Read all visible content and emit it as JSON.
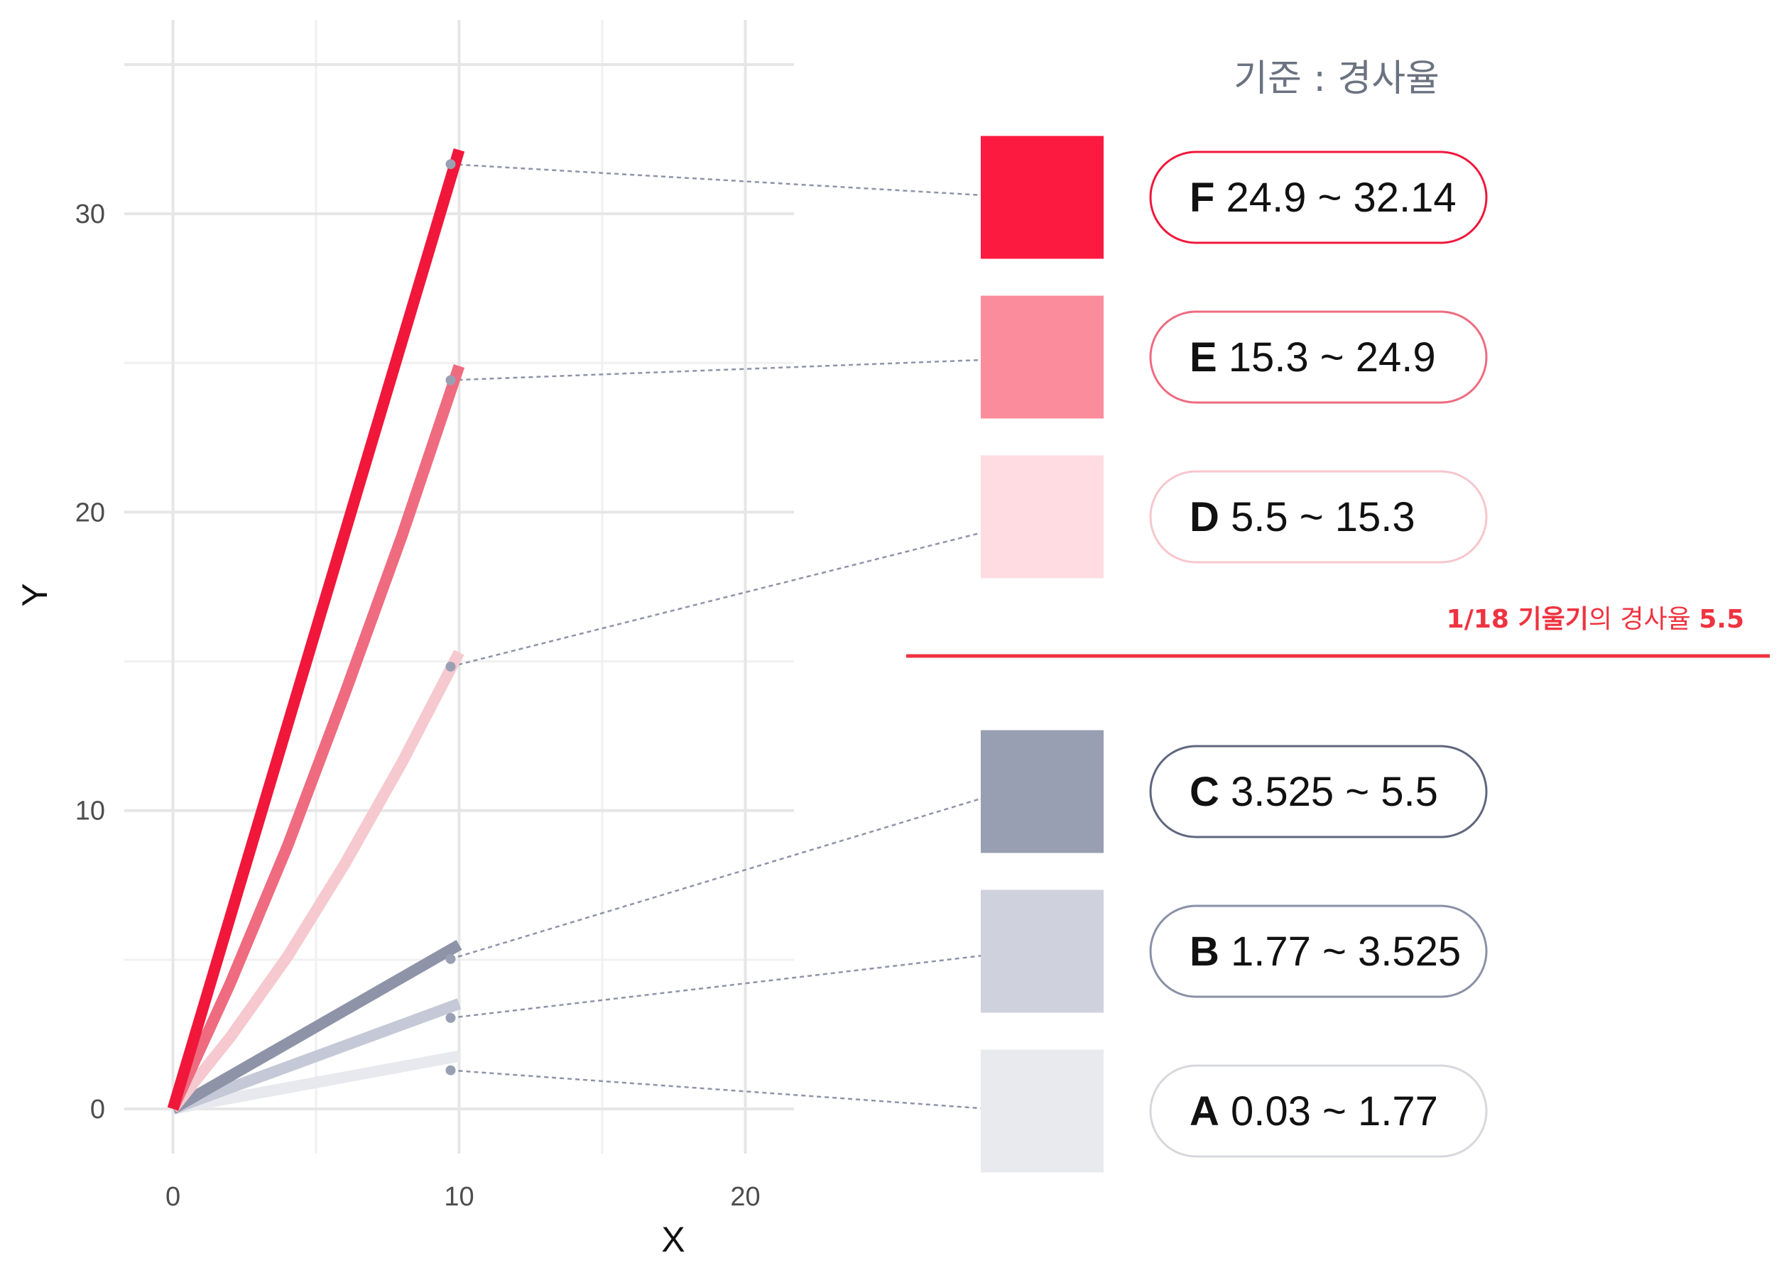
{
  "chart_data": {
    "type": "line",
    "xlabel": "X",
    "ylabel": "Y",
    "xlim": [
      -1.7,
      21.7
    ],
    "ylim": [
      -1.5,
      36.5
    ],
    "x_ticks": [
      0,
      10,
      20
    ],
    "y_ticks": [
      0,
      10,
      20,
      30
    ],
    "grid": true,
    "legend_title": "기준 : 경사율",
    "series": [
      {
        "name": "A",
        "range": "0.03 ~ 1.77",
        "x": [
          0,
          10
        ],
        "y": [
          0,
          1.77
        ],
        "color": "#e8e9ee"
      },
      {
        "name": "B",
        "range": "1.77 ~ 3.525",
        "x": [
          0,
          10
        ],
        "y": [
          0,
          3.525
        ],
        "color": "#c5c8d6"
      },
      {
        "name": "C",
        "range": "3.525 ~ 5.5",
        "x": [
          0,
          10
        ],
        "y": [
          0,
          5.5
        ],
        "color": "#8e93a8"
      },
      {
        "name": "D",
        "range": "5.5 ~ 15.3",
        "x": [
          0,
          2,
          4,
          6,
          8,
          10
        ],
        "y": [
          0,
          2.4,
          5.1,
          8.2,
          11.6,
          15.3
        ],
        "color": "#f5c9cf"
      },
      {
        "name": "E",
        "range": "15.3 ~ 24.9",
        "x": [
          0,
          2,
          4,
          6,
          8,
          10
        ],
        "y": [
          0,
          4.2,
          8.8,
          13.9,
          19.2,
          24.9
        ],
        "color": "#ee6b80"
      },
      {
        "name": "F",
        "range": "24.9 ~ 32.14",
        "x": [
          0,
          10
        ],
        "y": [
          0,
          32.14
        ],
        "color": "#f0173b"
      }
    ],
    "legend_entries": [
      {
        "letter": "F",
        "range": "24.9 ~ 32.14",
        "swatch": "#fc1a40",
        "border": "#f0173b"
      },
      {
        "letter": "E",
        "range": "15.3 ~ 24.9",
        "swatch": "#fb8c9c",
        "border": "#ee6b80"
      },
      {
        "letter": "D",
        "range": "5.5 ~ 15.3",
        "swatch": "#fedce1",
        "border": "#f7c6cd"
      },
      {
        "letter": "C",
        "range": "3.525 ~ 5.5",
        "swatch": "#999fb2",
        "border": "#5f667d"
      },
      {
        "letter": "B",
        "range": "1.77 ~ 3.525",
        "swatch": "#cfd1dd",
        "border": "#8a90a6"
      },
      {
        "letter": "A",
        "range": "0.03 ~ 1.77",
        "swatch": "#e9eaee",
        "border": "#d7d8de"
      }
    ],
    "divider": {
      "label_part1": "1/18 기울기",
      "label_part2": "의 경사율 ",
      "label_value": "5.5",
      "color": "#ef3340"
    }
  }
}
